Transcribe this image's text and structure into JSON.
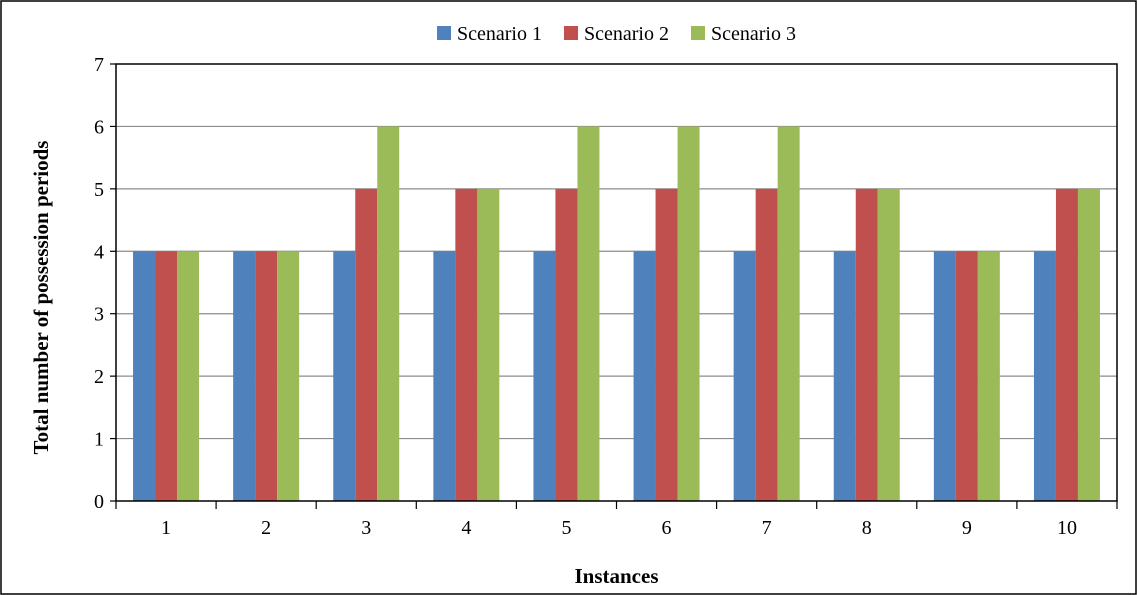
{
  "chart_data": {
    "type": "bar",
    "title": "",
    "xlabel": "Instances",
    "ylabel": "Total number of possession periods",
    "categories": [
      "1",
      "2",
      "3",
      "4",
      "5",
      "6",
      "7",
      "8",
      "9",
      "10"
    ],
    "ylim": [
      0,
      7
    ],
    "yticks": [
      "0",
      "1",
      "2",
      "3",
      "4",
      "5",
      "6",
      "7"
    ],
    "grid": true,
    "legend_position": "top",
    "series": [
      {
        "name": "Scenario 1",
        "color": "#4F81BD",
        "values": [
          4,
          4,
          4,
          4,
          4,
          4,
          4,
          4,
          4,
          4
        ]
      },
      {
        "name": "Scenario 2",
        "color": "#C0504D",
        "values": [
          4,
          4,
          5,
          5,
          5,
          5,
          5,
          5,
          4,
          5
        ]
      },
      {
        "name": "Scenario 3",
        "color": "#9BBB59",
        "values": [
          4,
          4,
          6,
          5,
          6,
          6,
          6,
          5,
          4,
          5
        ]
      }
    ]
  }
}
